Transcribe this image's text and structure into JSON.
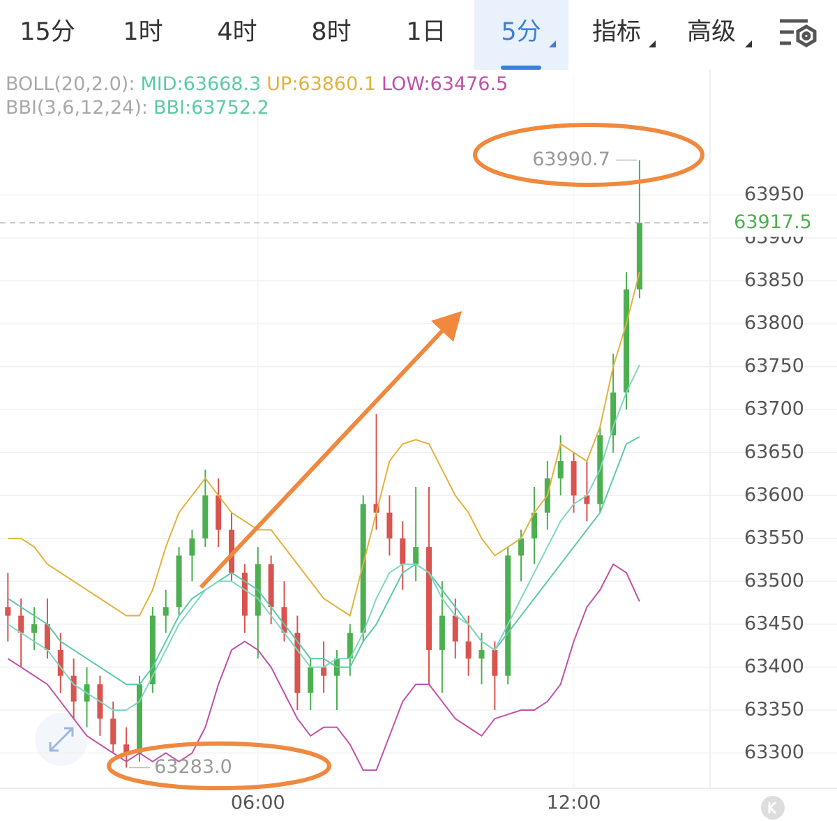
{
  "toolbar": {
    "tabs": [
      "15分",
      "1时",
      "4时",
      "8时",
      "1日",
      "5分",
      "指标",
      "高级"
    ],
    "selected": 5
  },
  "chart_data": {
    "type": "candlestick",
    "indicator_legend": [
      [
        {
          "text": "BOLL(20,2.0):",
          "color": "#a8a8a8"
        },
        {
          "text": "MID:63668.3",
          "color": "#5cc9a8"
        },
        {
          "text": "UP:63860.1",
          "color": "#e2b23a"
        },
        {
          "text": "LOW:63476.5",
          "color": "#c050a8"
        }
      ],
      [
        {
          "text": "BBI(3,6,12,24):",
          "color": "#a8a8a8"
        },
        {
          "text": "BBI:63752.2",
          "color": "#5cc9a8"
        }
      ]
    ],
    "x": [
      0,
      1,
      2,
      3,
      4,
      5,
      6,
      7,
      8,
      9,
      10,
      11,
      12,
      13,
      14,
      15,
      16,
      17,
      18,
      19,
      20,
      21,
      22,
      23,
      24,
      25,
      26,
      27,
      28,
      29,
      30,
      31,
      32,
      33,
      34,
      35,
      36,
      37,
      38,
      39,
      40,
      41,
      42,
      43,
      44,
      45,
      46,
      47,
      48
    ],
    "open": [
      63470,
      63460,
      63440,
      63450,
      63420,
      63390,
      63360,
      63380,
      63340,
      63310,
      63300,
      63380,
      63460,
      63470,
      63530,
      63550,
      63600,
      63560,
      63510,
      63460,
      63520,
      63470,
      63440,
      63370,
      63400,
      63390,
      63410,
      63440,
      63590,
      63580,
      63550,
      63520,
      63540,
      63420,
      63460,
      63430,
      63410,
      63420,
      63390,
      63530,
      63550,
      63580,
      63620,
      63640,
      63600,
      63590,
      63670,
      63720,
      63840
    ],
    "high": [
      63510,
      63480,
      63470,
      63480,
      63440,
      63410,
      63400,
      63390,
      63360,
      63330,
      63390,
      63470,
      63490,
      63540,
      63560,
      63630,
      63620,
      63580,
      63520,
      63540,
      63530,
      63500,
      63460,
      63410,
      63430,
      63420,
      63450,
      63600,
      63695,
      63600,
      63570,
      63610,
      63610,
      63500,
      63480,
      63460,
      63440,
      63430,
      63540,
      63560,
      63610,
      63640,
      63670,
      63650,
      63640,
      63680,
      63765,
      63860,
      63990.7
    ],
    "low": [
      63430,
      63400,
      63420,
      63410,
      63370,
      63340,
      63330,
      63320,
      63300,
      63283,
      63290,
      63370,
      63440,
      63460,
      63500,
      63540,
      63540,
      63500,
      63440,
      63410,
      63450,
      63430,
      63350,
      63350,
      63370,
      63350,
      63390,
      63430,
      63560,
      63530,
      63490,
      63500,
      63380,
      63370,
      63410,
      63390,
      63380,
      63350,
      63380,
      63500,
      63520,
      63560,
      63600,
      63580,
      63570,
      63580,
      63650,
      63700,
      63830
    ],
    "close": [
      63460,
      63440,
      63450,
      63420,
      63390,
      63360,
      63380,
      63340,
      63310,
      63300,
      63380,
      63460,
      63470,
      63530,
      63550,
      63600,
      63560,
      63510,
      63460,
      63520,
      63470,
      63440,
      63370,
      63400,
      63390,
      63410,
      63440,
      63590,
      63580,
      63550,
      63520,
      63540,
      63420,
      63460,
      63430,
      63410,
      63420,
      63390,
      63530,
      63550,
      63580,
      63620,
      63640,
      63600,
      63590,
      63670,
      63720,
      63840,
      63917.5
    ],
    "up_color": "#4caf50",
    "down_color": "#d9534f",
    "series": [
      {
        "name": "UP",
        "color": "#e2b23a",
        "values": [
          63550,
          63550,
          63540,
          63520,
          63510,
          63500,
          63490,
          63480,
          63470,
          63460,
          63460,
          63490,
          63540,
          63580,
          63600,
          63620,
          63600,
          63580,
          63570,
          63560,
          63560,
          63540,
          63520,
          63500,
          63480,
          63470,
          63460,
          63520,
          63580,
          63640,
          63660,
          63665,
          63660,
          63630,
          63600,
          63580,
          63550,
          63530,
          63540,
          63550,
          63580,
          63600,
          63660,
          63650,
          63640,
          63680,
          63750,
          63800,
          63860.1
        ]
      },
      {
        "name": "MID",
        "color": "#5cc9a8",
        "values": [
          63480,
          63470,
          63460,
          63450,
          63430,
          63420,
          63410,
          63400,
          63390,
          63380,
          63380,
          63400,
          63430,
          63460,
          63480,
          63490,
          63500,
          63510,
          63500,
          63490,
          63470,
          63450,
          63430,
          63410,
          63410,
          63400,
          63400,
          63430,
          63450,
          63480,
          63510,
          63520,
          63510,
          63490,
          63470,
          63450,
          63430,
          63420,
          63440,
          63460,
          63480,
          63500,
          63520,
          63540,
          63560,
          63580,
          63620,
          63660,
          63668.3
        ]
      },
      {
        "name": "LOW",
        "color": "#c050a8",
        "values": [
          63410,
          63400,
          63390,
          63380,
          63360,
          63340,
          63320,
          63310,
          63300,
          63290,
          63300,
          63290,
          63300,
          63290,
          63300,
          63330,
          63380,
          63420,
          63430,
          63420,
          63400,
          63370,
          63340,
          63320,
          63330,
          63330,
          63310,
          63280,
          63280,
          63320,
          63360,
          63380,
          63380,
          63360,
          63340,
          63330,
          63320,
          63340,
          63345,
          63350,
          63350,
          63360,
          63380,
          63430,
          63470,
          63490,
          63520,
          63510,
          63476.5
        ]
      },
      {
        "name": "BBI",
        "color": "#7fd6c2",
        "values": [
          63450,
          63440,
          63430,
          63420,
          63400,
          63380,
          63370,
          63360,
          63350,
          63350,
          63360,
          63390,
          63420,
          63450,
          63470,
          63490,
          63500,
          63500,
          63490,
          63480,
          63460,
          63440,
          63420,
          63400,
          63400,
          63410,
          63410,
          63440,
          63480,
          63510,
          63520,
          63520,
          63510,
          63480,
          63460,
          63450,
          63430,
          63420,
          63450,
          63480,
          63510,
          63540,
          63570,
          63590,
          63600,
          63630,
          63680,
          63720,
          63752.2
        ]
      }
    ],
    "high_annotation": 63990.7,
    "low_annotation": {
      "value": 63283,
      "label": "63283.0"
    },
    "last_price": 63917.5,
    "xlim": [
      -0.6,
      53.2
    ],
    "xticks": [
      {
        "value": 19,
        "label": "06:00"
      },
      {
        "value": 43,
        "label": "12:00"
      }
    ],
    "ylim": [
      63259,
      64039
    ],
    "yticks": [
      63300,
      63350,
      63400,
      63450,
      63500,
      63550,
      63600,
      63650,
      63700,
      63750,
      63800,
      63850,
      63900,
      63950
    ],
    "grid": true
  }
}
